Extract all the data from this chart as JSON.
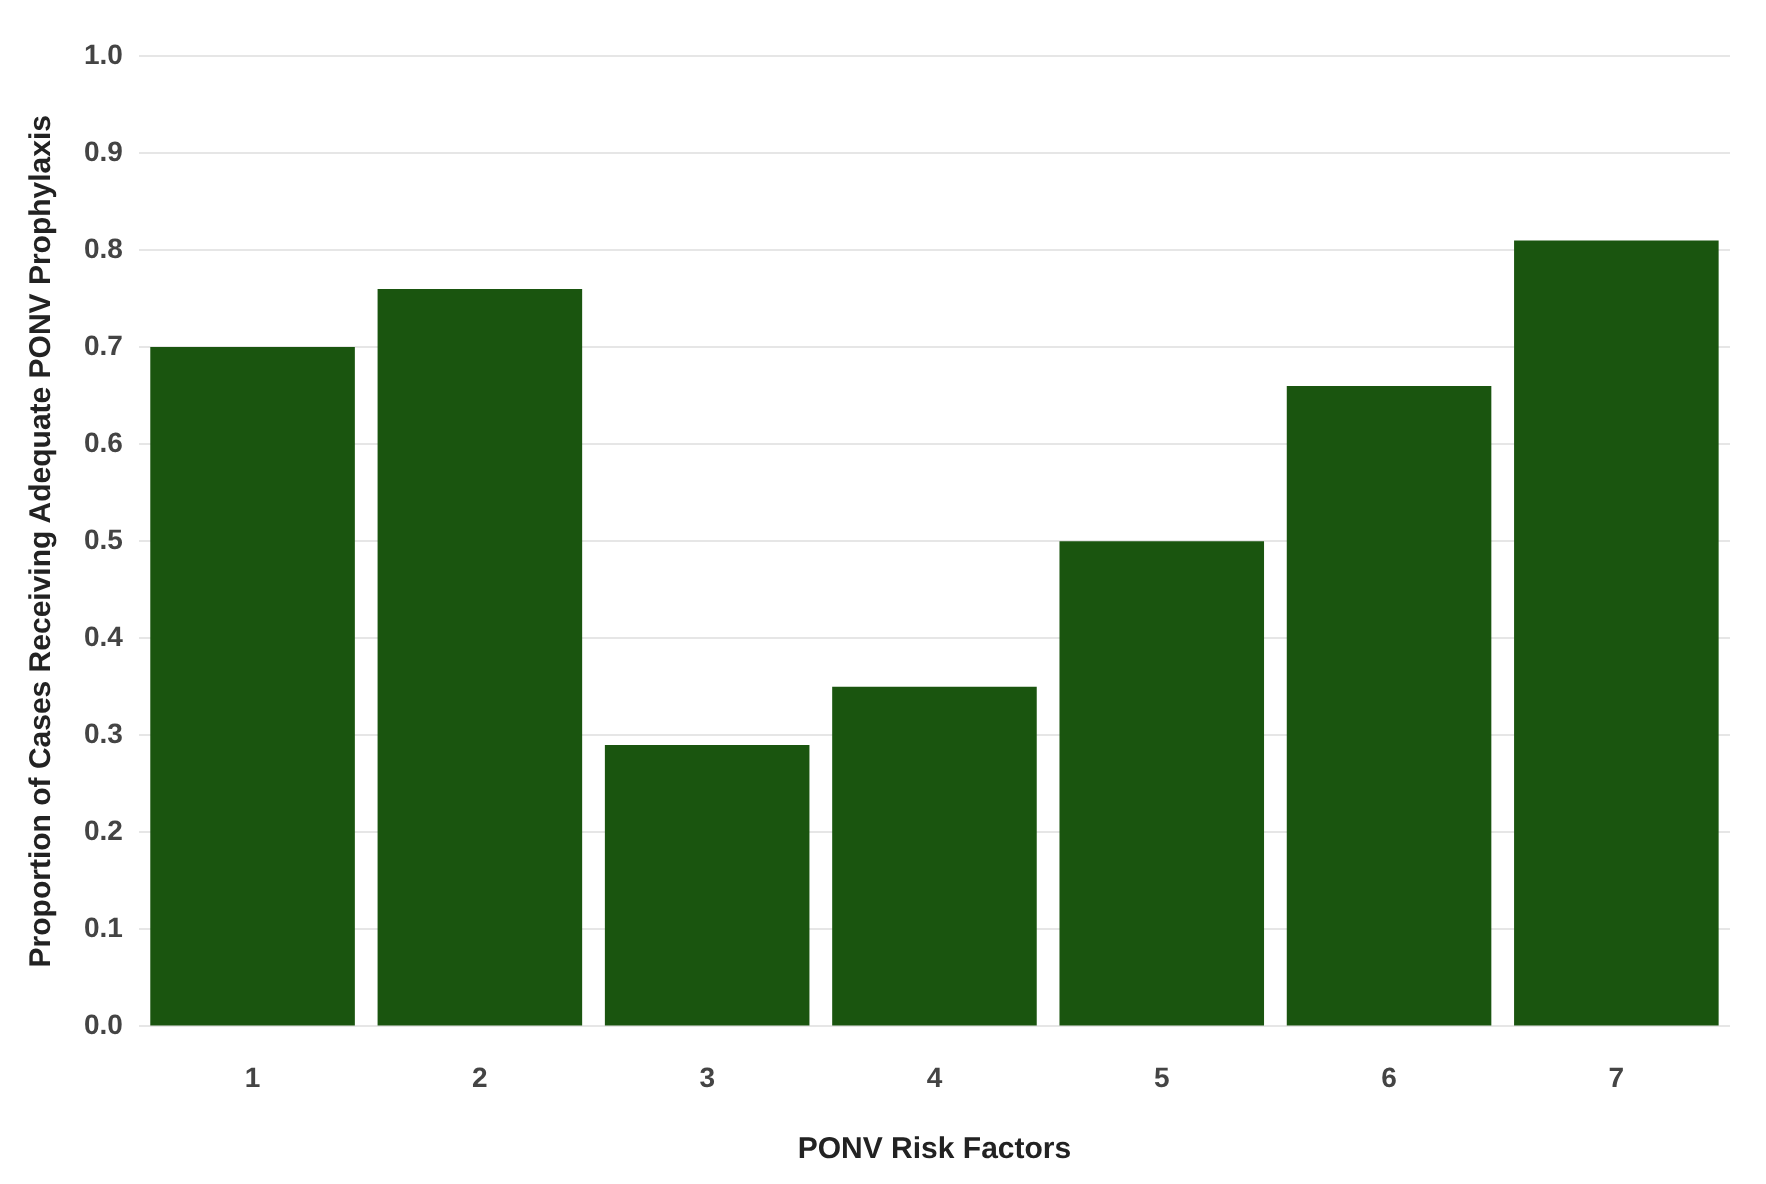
{
  "chart_data": {
    "type": "bar",
    "xlabel": "PONV Risk Factors",
    "ylabel": "Proportion of Cases Receiving Adequate PONV Prophylaxis",
    "categories": [
      "1",
      "2",
      "3",
      "4",
      "5",
      "6",
      "7"
    ],
    "values": [
      0.7,
      0.76,
      0.29,
      0.35,
      0.5,
      0.66,
      0.81
    ],
    "color": "#1a550f",
    "ylim": [
      0,
      1.0
    ],
    "yticks": [
      {
        "value": 0,
        "label": "0.0"
      },
      {
        "value": 0.1,
        "label": "0.1"
      },
      {
        "value": 0.2,
        "label": "0.2"
      },
      {
        "value": 0.3,
        "label": "0.3"
      },
      {
        "value": 0.4,
        "label": "0.4"
      },
      {
        "value": 0.5,
        "label": "0.5"
      },
      {
        "value": 0.6,
        "label": "0.6"
      },
      {
        "value": 0.7,
        "label": "0.7"
      },
      {
        "value": 0.8,
        "label": "0.8"
      },
      {
        "value": 0.9,
        "label": "0.9"
      },
      {
        "value": 1.0,
        "label": "1.0"
      }
    ],
    "grid": "y",
    "legend": false
  }
}
